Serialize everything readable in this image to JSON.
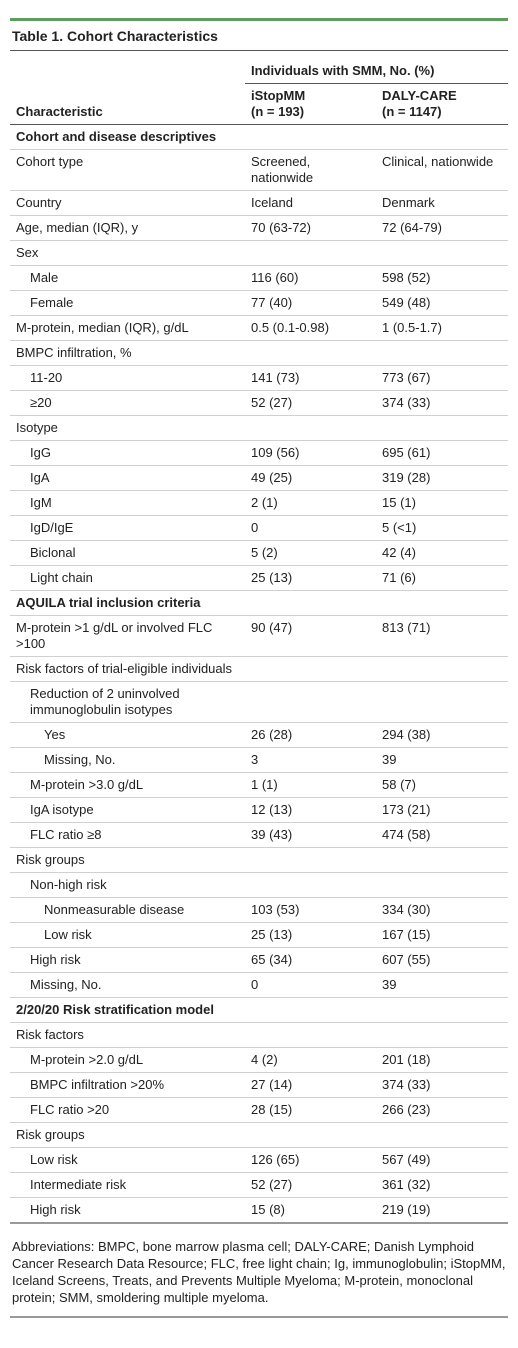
{
  "title": "Table 1. Cohort Characteristics",
  "header": {
    "characteristic": "Characteristic",
    "group": "Individuals with SMM, No. (%)",
    "columns": [
      [
        "iStopMM",
        "(n = 193)"
      ],
      [
        "DALY-CARE",
        "(n = 1147)"
      ]
    ]
  },
  "sections": [
    {
      "title": "Cohort and disease descriptives",
      "rows": [
        {
          "label": "Cohort type",
          "values": [
            "Screened, nationwide",
            "Clinical, nationwide"
          ]
        },
        {
          "label": "Country",
          "values": [
            "Iceland",
            "Denmark"
          ]
        },
        {
          "label": "Age, median (IQR), y",
          "values": [
            "70 (63-72)",
            "72 (64-79)"
          ]
        },
        {
          "label": "Sex",
          "rows": [
            {
              "label": "Male",
              "values": [
                "116 (60)",
                "598 (52)"
              ]
            },
            {
              "label": "Female",
              "values": [
                "77 (40)",
                "549 (48)"
              ]
            }
          ]
        },
        {
          "label": "M-protein, median (IQR), g/dL",
          "values": [
            "0.5 (0.1-0.98)",
            "1 (0.5-1.7)"
          ]
        },
        {
          "label": "BMPC infiltration, %",
          "rows": [
            {
              "label": "11-20",
              "values": [
                "141 (73)",
                "773 (67)"
              ]
            },
            {
              "label": "≥20",
              "values": [
                "52 (27)",
                "374 (33)"
              ]
            }
          ]
        },
        {
          "label": "Isotype",
          "rows": [
            {
              "label": "IgG",
              "values": [
                "109 (56)",
                "695 (61)"
              ]
            },
            {
              "label": "IgA",
              "values": [
                "49 (25)",
                "319 (28)"
              ]
            },
            {
              "label": "IgM",
              "values": [
                "2 (1)",
                "15 (1)"
              ]
            },
            {
              "label": "IgD/IgE",
              "values": [
                "0",
                "5 (<1)"
              ]
            },
            {
              "label": "Biclonal",
              "values": [
                "5 (2)",
                "42 (4)"
              ]
            },
            {
              "label": "Light chain",
              "values": [
                "25 (13)",
                "71 (6)"
              ]
            }
          ]
        }
      ]
    },
    {
      "title": "AQUILA trial inclusion criteria",
      "rows": [
        {
          "label": "M-protein >1 g/dL or involved FLC >100",
          "values": [
            "90 (47)",
            "813 (71)"
          ]
        },
        {
          "label": "Risk factors of trial-eligible individuals",
          "rows": [
            {
              "label": "Reduction of 2 uninvolved immunoglobulin isotypes",
              "rows": [
                {
                  "label": "Yes",
                  "values": [
                    "26 (28)",
                    "294 (38)"
                  ]
                },
                {
                  "label": "Missing, No.",
                  "values": [
                    "3",
                    "39"
                  ]
                }
              ]
            },
            {
              "label": "M-protein >3.0 g/dL",
              "values": [
                "1 (1)",
                "58 (7)"
              ]
            },
            {
              "label": "IgA isotype",
              "values": [
                "12 (13)",
                "173 (21)"
              ]
            },
            {
              "label": "FLC ratio ≥8",
              "values": [
                "39 (43)",
                "474 (58)"
              ]
            }
          ]
        },
        {
          "label": "Risk groups",
          "rows": [
            {
              "label": "Non-high risk",
              "rows": [
                {
                  "label": "Nonmeasurable disease",
                  "values": [
                    "103 (53)",
                    "334 (30)"
                  ]
                },
                {
                  "label": "Low risk",
                  "values": [
                    "25 (13)",
                    "167 (15)"
                  ]
                }
              ]
            },
            {
              "label": "High risk",
              "values": [
                "65 (34)",
                "607 (55)"
              ]
            },
            {
              "label": "Missing, No.",
              "values": [
                "0",
                "39"
              ]
            }
          ]
        }
      ]
    },
    {
      "title": "2/20/20 Risk stratification model",
      "rows": [
        {
          "label": "Risk factors",
          "rows": [
            {
              "label": "M-protein >2.0 g/dL",
              "values": [
                "4 (2)",
                "201 (18)"
              ]
            },
            {
              "label": "BMPC infiltration >20%",
              "values": [
                "27 (14)",
                "374 (33)"
              ]
            },
            {
              "label": "FLC ratio >20",
              "values": [
                "28 (15)",
                "266 (23)"
              ]
            }
          ]
        },
        {
          "label": "Risk groups",
          "rows": [
            {
              "label": "Low risk",
              "values": [
                "126 (65)",
                "567 (49)"
              ]
            },
            {
              "label": "Intermediate risk",
              "values": [
                "52 (27)",
                "361 (32)"
              ]
            },
            {
              "label": "High risk",
              "values": [
                "15 (8)",
                "219 (19)"
              ]
            }
          ]
        }
      ]
    }
  ],
  "footnote": "Abbreviations: BMPC, bone marrow plasma cell; DALY-CARE; Danish Lymphoid Cancer Research Data Resource; FLC, free light chain; Ig, immunoglobulin; iStopMM, Iceland Screens, Treats, and Prevents Multiple Myeloma; M-protein, monoclonal protein; SMM, smoldering multiple myeloma."
}
